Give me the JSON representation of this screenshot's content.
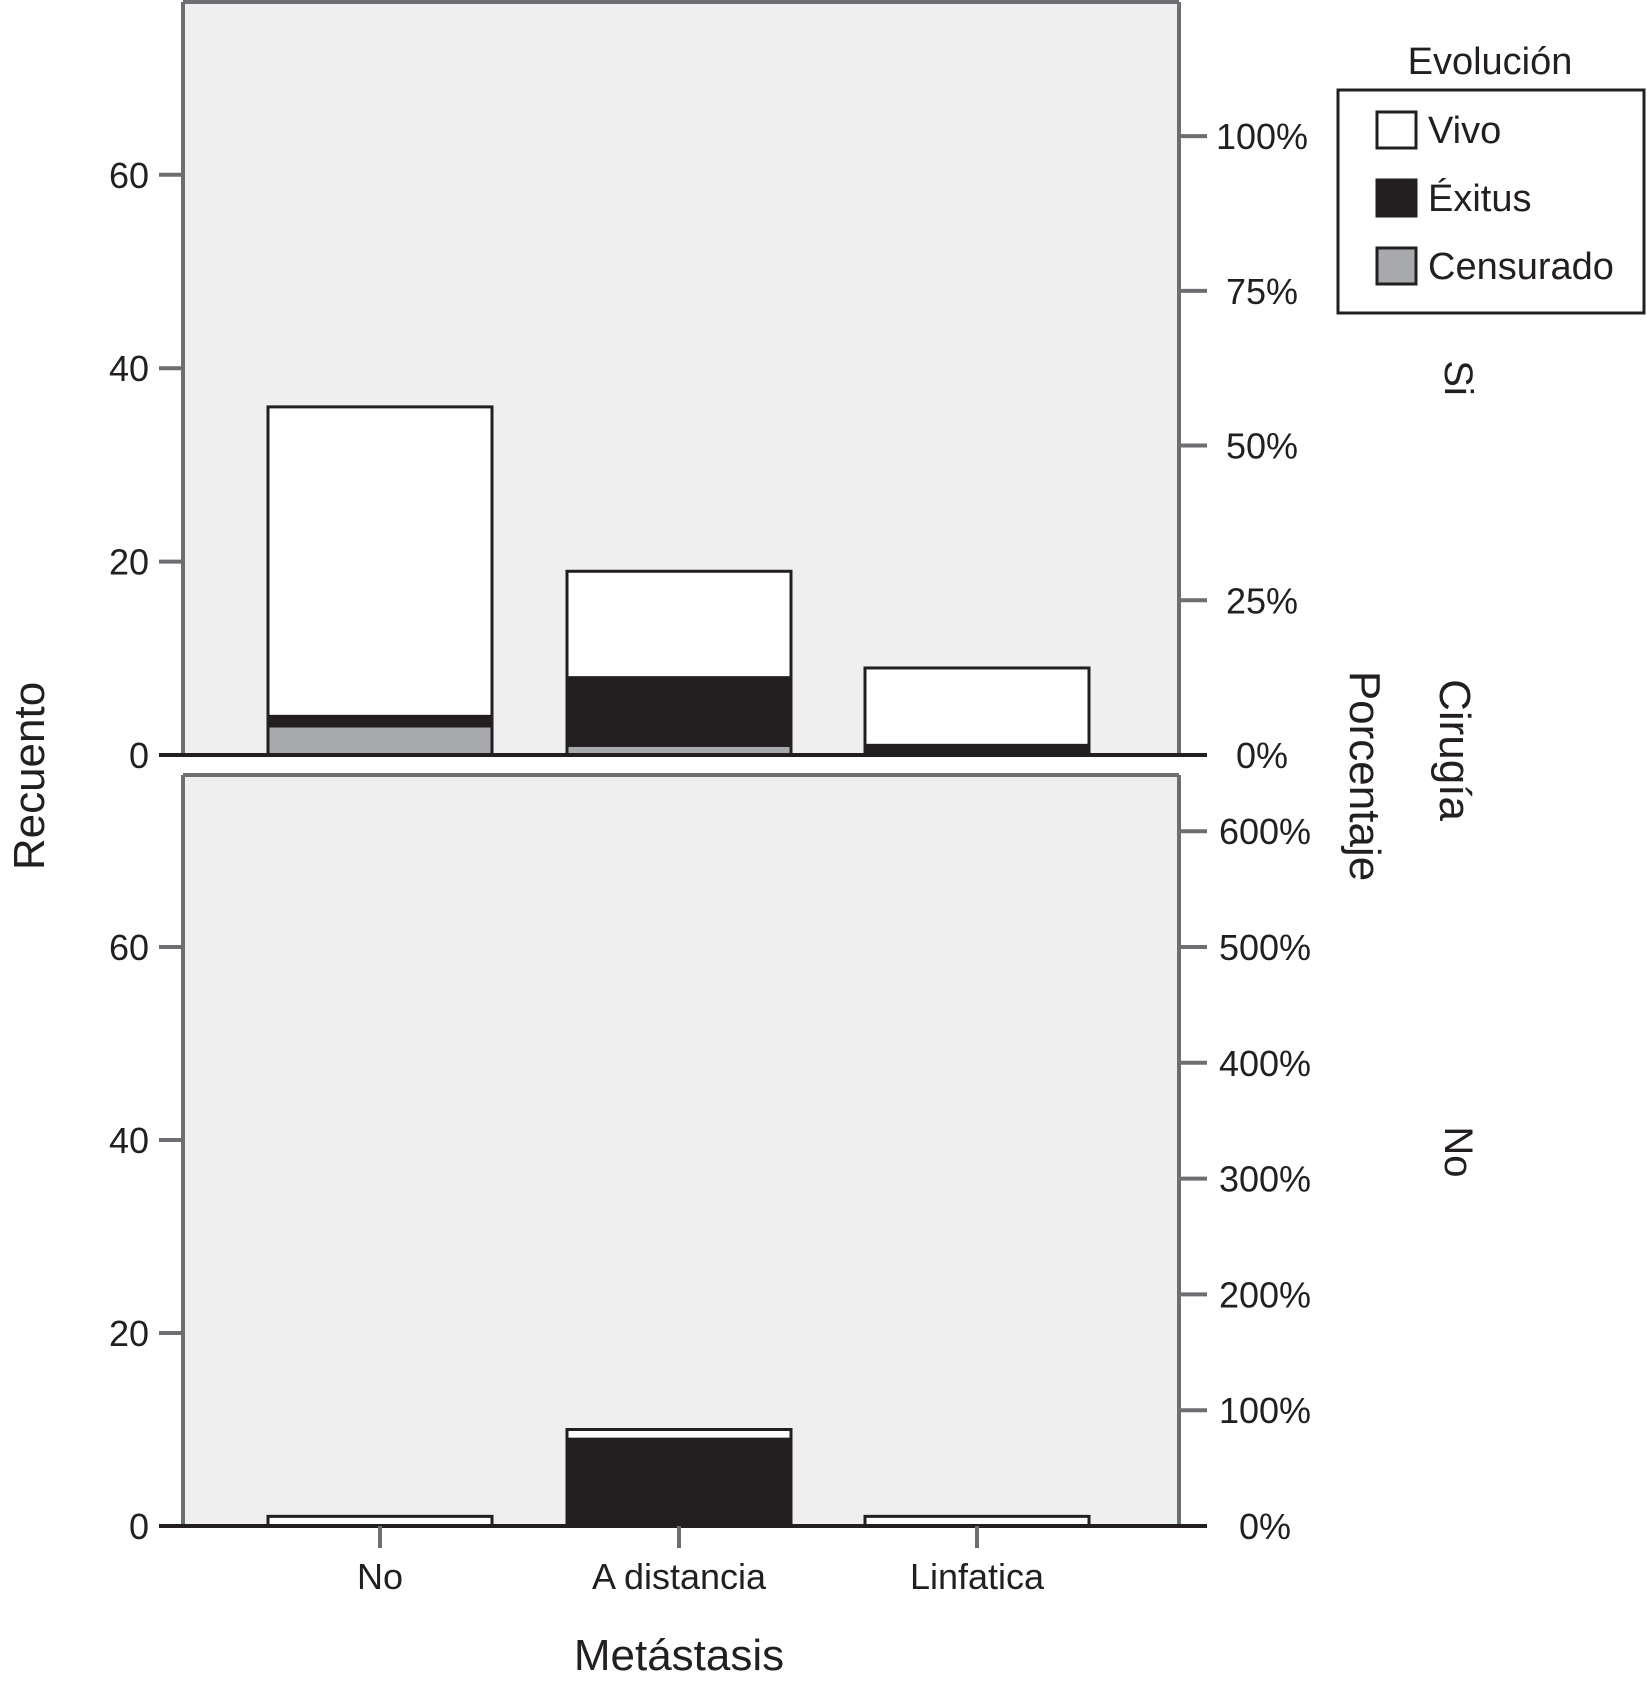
{
  "chart_data": {
    "type": "bar",
    "stacked": true,
    "xlabel": "Metástasis",
    "ylabel": "Recuento",
    "y2label": "Porcentaje",
    "facet_label": "Cirugía",
    "categories": [
      "No",
      "A distancia",
      "Linfatica"
    ],
    "legend": {
      "title": "Evolución",
      "position": "top-right",
      "entries": [
        {
          "name": "Vivo",
          "color": "#ffffff"
        },
        {
          "name": "Éxitus",
          "color": "#231f20"
        },
        {
          "name": "Censurado",
          "color": "#a7a9ac"
        }
      ]
    },
    "colors": {
      "panel_bg": "#efefef",
      "axis": "#6d6e71",
      "bar_edge": "#231f20",
      "text": "#231f20"
    },
    "panels": [
      {
        "facet": "Si",
        "ylim": [
          0,
          78
        ],
        "yticks": [
          0,
          20,
          40,
          60
        ],
        "y2ticks": [
          "0%",
          "25%",
          "50%",
          "75%",
          "100%"
        ],
        "y2_counts": [
          0,
          16,
          32,
          48,
          64
        ],
        "series": [
          {
            "name": "Censurado",
            "values": [
              3,
              1,
              0
            ]
          },
          {
            "name": "Éxitus",
            "values": [
              1,
              7,
              1
            ]
          },
          {
            "name": "Vivo",
            "values": [
              32,
              11,
              8
            ]
          }
        ]
      },
      {
        "facet": "No",
        "ylim": [
          0,
          78
        ],
        "yticks": [
          0,
          20,
          40,
          60
        ],
        "y2ticks": [
          "0%",
          "100%",
          "200%",
          "300%",
          "400%",
          "500%",
          "600%"
        ],
        "y2_counts": [
          0,
          12,
          24,
          36,
          48,
          60,
          72
        ],
        "series": [
          {
            "name": "Censurado",
            "values": [
              0,
              0,
              0
            ]
          },
          {
            "name": "Éxitus",
            "values": [
              0,
              9,
              0
            ]
          },
          {
            "name": "Vivo",
            "values": [
              1,
              1,
              1
            ]
          }
        ]
      }
    ]
  }
}
